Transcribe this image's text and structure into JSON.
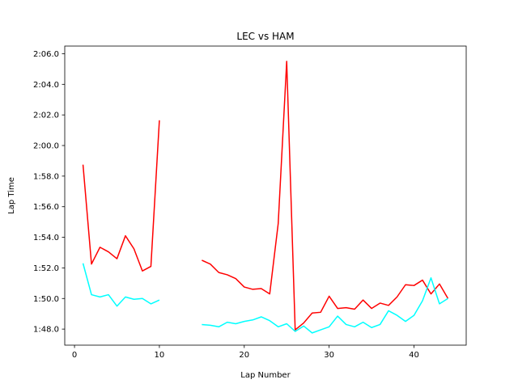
{
  "chart_data": {
    "type": "line",
    "title": "LEC vs HAM",
    "xlabel": "Lap Number",
    "ylabel": "Lap Time",
    "xlim": [
      -1.15,
      46.15
    ],
    "ylim": [
      106.95,
      126.5
    ],
    "x_ticks": [
      0,
      10,
      20,
      30,
      40
    ],
    "x_tick_labels": [
      "0",
      "10",
      "20",
      "30",
      "40"
    ],
    "y_ticks": [
      108,
      110,
      112,
      114,
      116,
      118,
      120,
      122,
      124,
      126
    ],
    "y_tick_labels": [
      "1:48.0",
      "1:50.0",
      "1:52.0",
      "1:54.0",
      "1:56.0",
      "1:58.0",
      "2:00.0",
      "2:02.0",
      "2:04.0",
      "2:06.0"
    ],
    "grid": false,
    "series": [
      {
        "color": "#ff0000",
        "segments": [
          {
            "x": [
              1,
              2,
              3,
              4,
              5,
              6,
              7,
              8,
              9,
              10
            ],
            "y": [
              118.75,
              112.25,
              113.35,
              113.05,
              112.6,
              114.1,
              113.25,
              111.8,
              112.1,
              121.65
            ]
          },
          {
            "x": [
              15,
              16,
              17,
              18,
              19,
              20,
              21,
              22,
              23,
              24,
              25,
              26,
              27,
              28,
              29,
              30,
              31,
              32,
              33,
              34,
              35,
              36,
              37,
              38,
              39,
              40,
              41,
              42,
              43,
              44
            ],
            "y": [
              112.5,
              112.25,
              111.7,
              111.55,
              111.3,
              110.75,
              110.6,
              110.65,
              110.3,
              114.9,
              125.5,
              107.95,
              108.4,
              109.05,
              109.1,
              110.15,
              109.35,
              109.4,
              109.3,
              109.9,
              109.35,
              109.7,
              109.55,
              110.1,
              110.9,
              110.85,
              111.2,
              110.3,
              110.95,
              110.0
            ]
          }
        ]
      },
      {
        "color": "#00ffff",
        "segments": [
          {
            "x": [
              1,
              2,
              3,
              4,
              5,
              6,
              7,
              8,
              9,
              10
            ],
            "y": [
              112.3,
              110.25,
              110.1,
              110.25,
              109.5,
              110.1,
              109.95,
              110.0,
              109.65,
              109.9
            ]
          },
          {
            "x": [
              15,
              16,
              17,
              18,
              19,
              20,
              21,
              22,
              23,
              24,
              25,
              26,
              27,
              28,
              29,
              30,
              31,
              32,
              33,
              34,
              35,
              36,
              37,
              38,
              39,
              40,
              41,
              42,
              43,
              44
            ],
            "y": [
              108.3,
              108.25,
              108.15,
              108.45,
              108.35,
              108.5,
              108.6,
              108.8,
              108.55,
              108.15,
              108.35,
              107.85,
              108.2,
              107.75,
              107.95,
              108.15,
              108.85,
              108.3,
              108.15,
              108.45,
              108.1,
              108.3,
              109.2,
              108.9,
              108.5,
              108.9,
              109.85,
              111.35,
              109.65,
              110.0
            ]
          }
        ]
      }
    ]
  }
}
